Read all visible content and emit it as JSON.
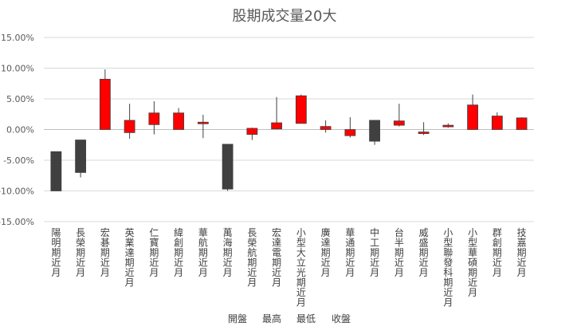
{
  "chart_data": {
    "type": "candlestick",
    "title": "股期成交量20大",
    "ylim": [
      -0.15,
      0.15
    ],
    "yticks": [
      0.15,
      0.1,
      0.05,
      0.0,
      -0.05,
      -0.1,
      -0.15
    ],
    "ytick_labels": [
      "15.00%",
      "10.00%",
      "5.00%",
      "0.00%",
      "-5.00%",
      "-10.00%",
      "-15.00%"
    ],
    "legend": [
      "開盤",
      "最高",
      "最低",
      "收盤"
    ],
    "colors": {
      "up": "#ff0000",
      "down": "#404040",
      "wick": "#404040",
      "text": "#404040"
    },
    "categories": [
      "陽明期近月",
      "長榮期近月",
      "宏碁期近月",
      "英業達期近月",
      "仁寶期近月",
      "緯創期近月",
      "華航期近月",
      "萬海期近月",
      "長榮航期近月",
      "宏達電期近月",
      "小型大立光期近月",
      "廣達期近月",
      "華通期近月",
      "中工期近月",
      "台半期近月",
      "威盛期近月",
      "小型聯發科期近月",
      "小型華碩期近月",
      "群創期近月",
      "技嘉期近月"
    ],
    "open": [
      -0.036,
      -0.017,
      0.0,
      -0.005,
      0.008,
      0.0,
      0.01,
      -0.024,
      -0.008,
      0.001,
      0.01,
      0.0,
      -0.01,
      0.015,
      0.007,
      -0.004,
      0.007,
      0.0,
      0.0,
      0.0
    ],
    "high": [
      -0.036,
      -0.017,
      0.098,
      0.042,
      0.046,
      0.035,
      0.024,
      -0.024,
      0.003,
      0.053,
      0.057,
      0.015,
      0.02,
      0.015,
      0.042,
      0.012,
      0.01,
      0.057,
      0.028,
      0.02
    ],
    "low": [
      -0.1,
      -0.078,
      0.0,
      -0.015,
      -0.008,
      0.0,
      -0.014,
      -0.1,
      -0.017,
      0.0,
      0.01,
      -0.005,
      -0.013,
      -0.025,
      0.005,
      -0.009,
      0.003,
      0.0,
      0.0,
      0.0
    ],
    "close": [
      -0.1,
      -0.07,
      0.082,
      0.015,
      0.027,
      0.027,
      0.012,
      -0.097,
      0.002,
      0.011,
      0.055,
      0.005,
      0.0,
      -0.019,
      0.014,
      -0.004,
      0.007,
      0.04,
      0.022,
      0.019
    ]
  }
}
